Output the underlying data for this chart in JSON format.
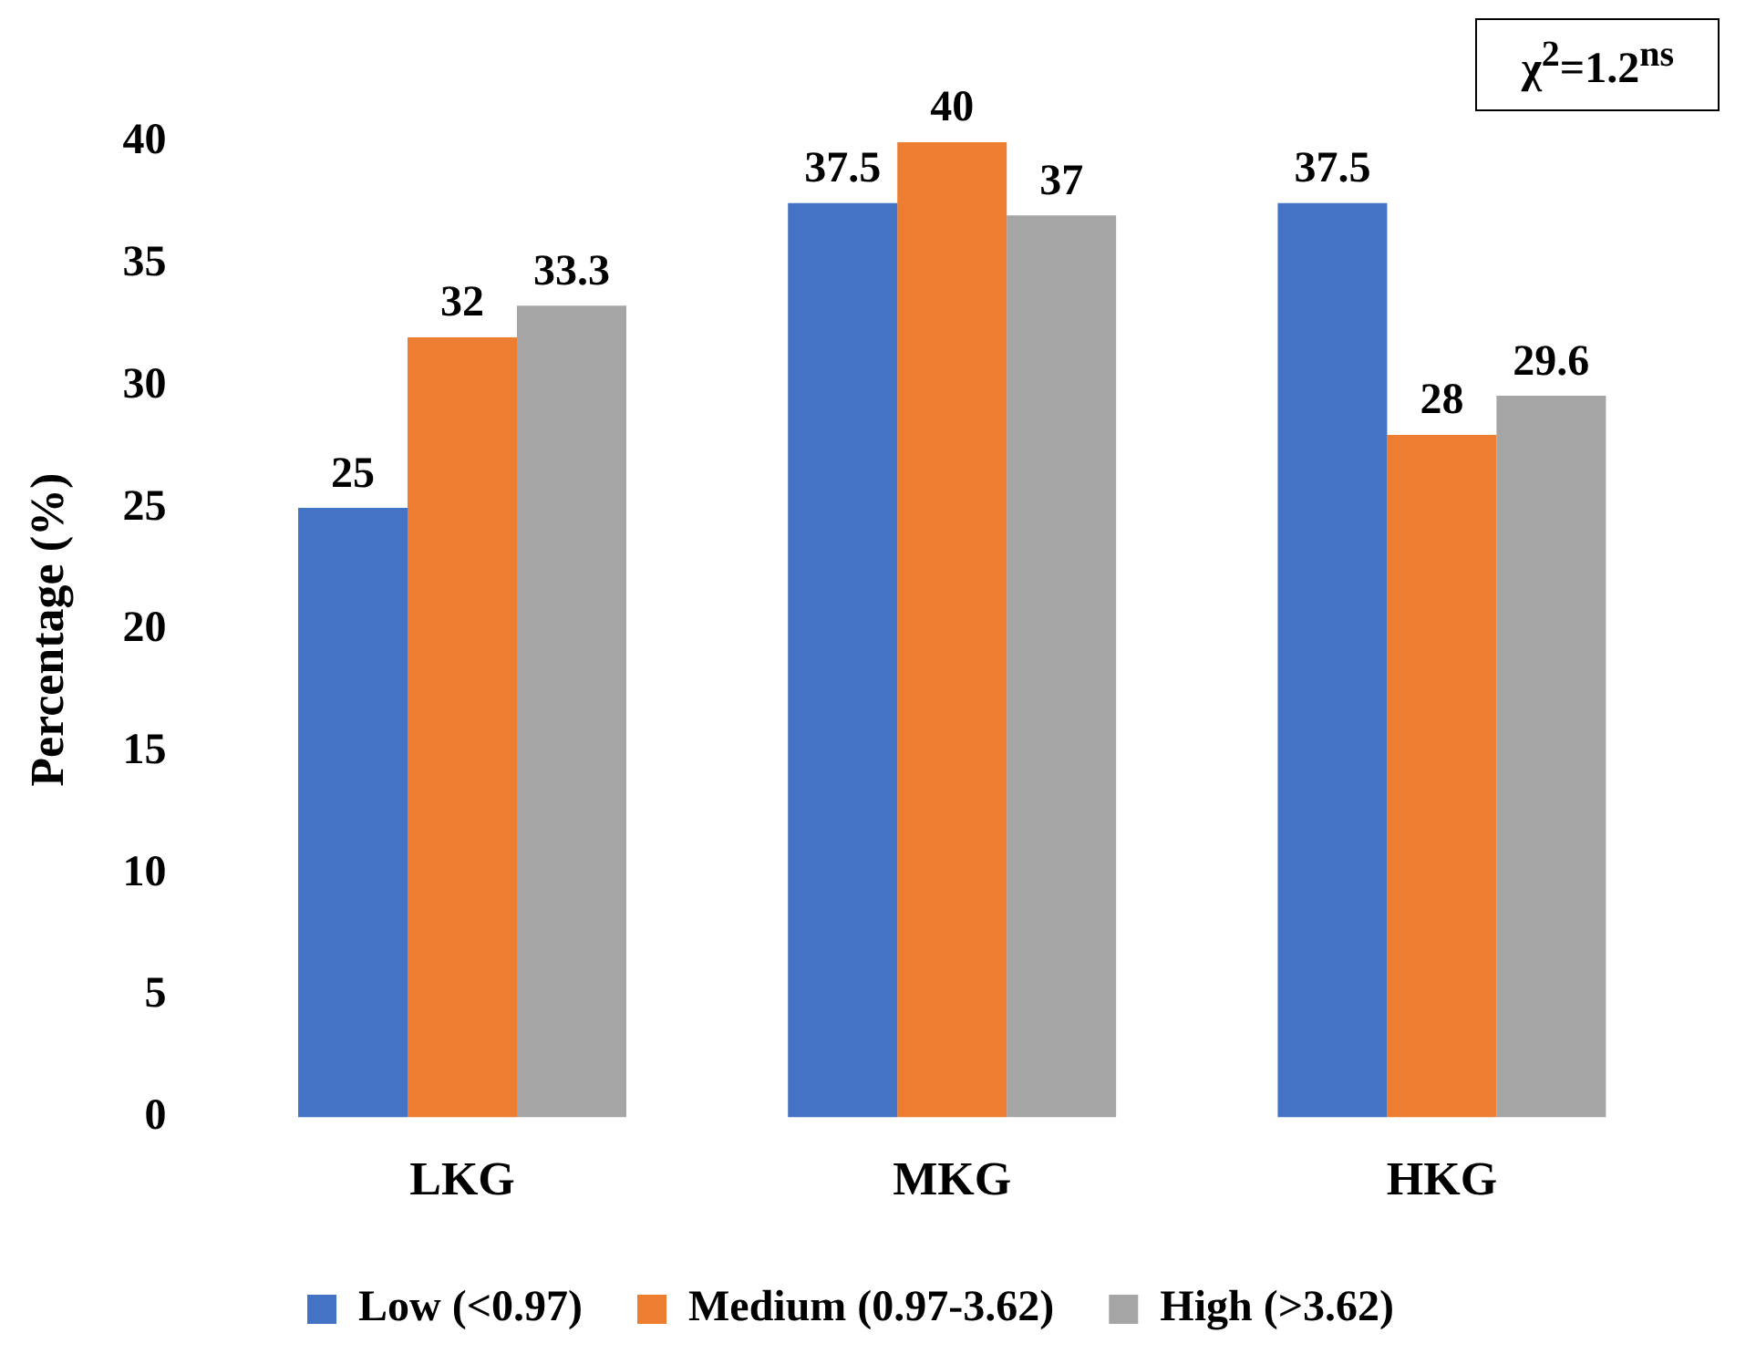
{
  "chart_data": {
    "type": "bar",
    "ylabel": "Percentage (%)",
    "categories": [
      "LKG",
      "MKG",
      "HKG"
    ],
    "series": [
      {
        "name": "Low (<0.97)",
        "color": "#4472c4",
        "values": [
          25,
          37.5,
          37.5
        ]
      },
      {
        "name": "Medium (0.97-3.62)",
        "color": "#ed7d31",
        "values": [
          32,
          40,
          28
        ]
      },
      {
        "name": "High (>3.62)",
        "color": "#a5a5a5",
        "values": [
          33.3,
          37,
          29.6
        ]
      }
    ],
    "ylim": [
      0,
      40
    ],
    "yticks": [
      0,
      5,
      10,
      15,
      20,
      25,
      30,
      35,
      40
    ],
    "grid": false,
    "legend": "bottom",
    "data_labels": true,
    "annotations": [
      "χ$^{2}$=1.2$^{ns}$"
    ]
  }
}
